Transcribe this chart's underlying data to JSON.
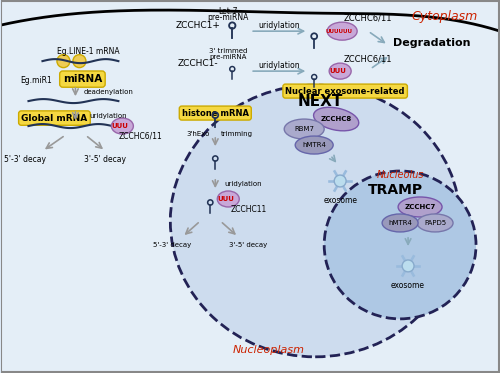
{
  "bg_color": "#dce8f5",
  "cytoplasm_label": "Cytoplasm",
  "nucleoplasm_label": "Nucleoplasm",
  "nucleolus_label": "Nucleolus",
  "degradation_label": "Degradation",
  "next_label": "NEXT",
  "tramp_label": "TRAMP",
  "nuclear_exo_label": "Nuclear exosome-related",
  "mirna_label": "miRNA",
  "global_mrna_label": "Global mRNA",
  "histone_mrna_label": "histone mRNA",
  "uuu_color": "#cc0000",
  "arrow_color": "#88aabb",
  "label_box_color": "#f5d842",
  "label_box_edge": "#ccaa00",
  "rna_color": "#223355",
  "cytoplasm_text_color": "#cc2200",
  "nucleolus_text_color": "#cc2200",
  "nucleus_fc": "#cddcee",
  "nucleus_ec": "#222255",
  "nucleolus_fc": "#aec8e4",
  "purple_oval_fc": "#b0a0cc",
  "purple_oval_ec": "#7755aa",
  "gray_oval_fc": "#9999bb",
  "gray_oval_ec": "#6666aa",
  "gray2_oval_fc": "#aaaacc",
  "gray2_oval_ec": "#7777aa",
  "exo_spoke_color": "#99bbdd",
  "exo_center_fc": "#bbddee",
  "exo_center_ec": "#88aacc",
  "uuu_ball_fc": "#c8a8d8",
  "uuu_ball_ec": "#9966aa",
  "yellow_circle_fc": "#eecc55",
  "yellow_circle_ec": "#ccaa00"
}
